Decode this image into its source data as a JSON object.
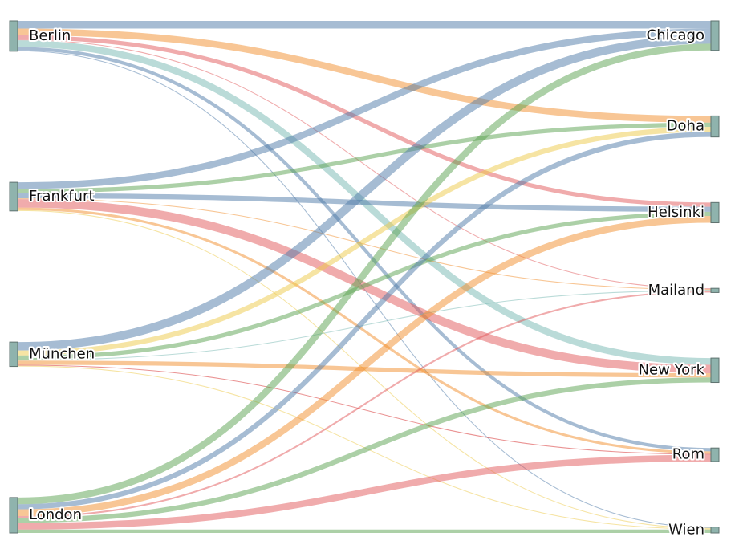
{
  "chart_data": {
    "type": "sankey",
    "sources": [
      "Berlin",
      "Frankfurt",
      "München",
      "London"
    ],
    "targets": [
      "Chicago",
      "Doha",
      "Helsinki",
      "Mailand",
      "New York",
      "Rom",
      "Wien"
    ],
    "links": [
      {
        "source": "Berlin",
        "target": "Chicago",
        "value": 9,
        "color": "#4e79a7"
      },
      {
        "source": "Berlin",
        "target": "Doha",
        "value": 8,
        "color": "#f28e2b"
      },
      {
        "source": "Berlin",
        "target": "Helsinki",
        "value": 5,
        "color": "#e15759"
      },
      {
        "source": "Berlin",
        "target": "Mailand",
        "value": 1,
        "color": "#e15759"
      },
      {
        "source": "Berlin",
        "target": "New York",
        "value": 8,
        "color": "#76b7b2"
      },
      {
        "source": "Berlin",
        "target": "Rom",
        "value": 4,
        "color": "#4e79a7"
      },
      {
        "source": "Berlin",
        "target": "Wien",
        "value": 1,
        "color": "#4e79a7"
      },
      {
        "source": "Frankfurt",
        "target": "Chicago",
        "value": 8,
        "color": "#4e79a7"
      },
      {
        "source": "Frankfurt",
        "target": "Doha",
        "value": 5,
        "color": "#59a14f"
      },
      {
        "source": "Frankfurt",
        "target": "Helsinki",
        "value": 6,
        "color": "#4e79a7"
      },
      {
        "source": "Frankfurt",
        "target": "Mailand",
        "value": 1,
        "color": "#f28e2b"
      },
      {
        "source": "Frankfurt",
        "target": "New York",
        "value": 10,
        "color": "#e15759"
      },
      {
        "source": "Frankfurt",
        "target": "Rom",
        "value": 3,
        "color": "#f28e2b"
      },
      {
        "source": "Frankfurt",
        "target": "Wien",
        "value": 1,
        "color": "#edc948"
      },
      {
        "source": "München",
        "target": "Chicago",
        "value": 10,
        "color": "#4e79a7"
      },
      {
        "source": "München",
        "target": "Doha",
        "value": 6,
        "color": "#edc948"
      },
      {
        "source": "München",
        "target": "Helsinki",
        "value": 5,
        "color": "#59a14f"
      },
      {
        "source": "München",
        "target": "Mailand",
        "value": 1,
        "color": "#76b7b2"
      },
      {
        "source": "München",
        "target": "New York",
        "value": 5,
        "color": "#f28e2b"
      },
      {
        "source": "München",
        "target": "Rom",
        "value": 1,
        "color": "#d62728"
      },
      {
        "source": "München",
        "target": "Wien",
        "value": 1,
        "color": "#edc948"
      },
      {
        "source": "London",
        "target": "Chicago",
        "value": 8,
        "color": "#59a14f"
      },
      {
        "source": "London",
        "target": "Doha",
        "value": 6,
        "color": "#4e79a7"
      },
      {
        "source": "London",
        "target": "Helsinki",
        "value": 8,
        "color": "#f28e2b"
      },
      {
        "source": "London",
        "target": "Mailand",
        "value": 2,
        "color": "#e15759"
      },
      {
        "source": "London",
        "target": "New York",
        "value": 6,
        "color": "#59a14f"
      },
      {
        "source": "London",
        "target": "Rom",
        "value": 8,
        "color": "#e15759"
      },
      {
        "source": "London",
        "target": "Wien",
        "value": 4,
        "color": "#59a14f"
      }
    ]
  }
}
